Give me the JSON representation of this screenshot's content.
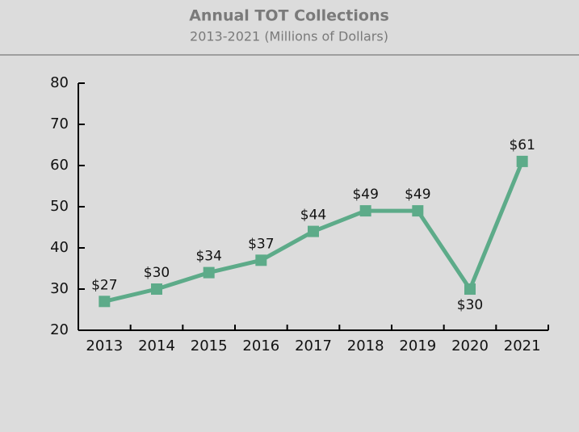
{
  "chart_data": {
    "type": "line",
    "title": "Annual TOT Collections",
    "subtitle": "2013-2021 (Millions of Dollars)",
    "categories": [
      "2013",
      "2014",
      "2015",
      "2016",
      "2017",
      "2018",
      "2019",
      "2020",
      "2021"
    ],
    "values": [
      27,
      30,
      34,
      37,
      44,
      49,
      49,
      30,
      61
    ],
    "value_labels": [
      "$27",
      "$30",
      "$34",
      "$37",
      "$44",
      "$49",
      "$49",
      "$30",
      "$61"
    ],
    "color": "#5dab89",
    "ylim": [
      20,
      80
    ],
    "yticks": [
      20,
      30,
      40,
      50,
      60,
      70,
      80
    ],
    "grid": false
  }
}
